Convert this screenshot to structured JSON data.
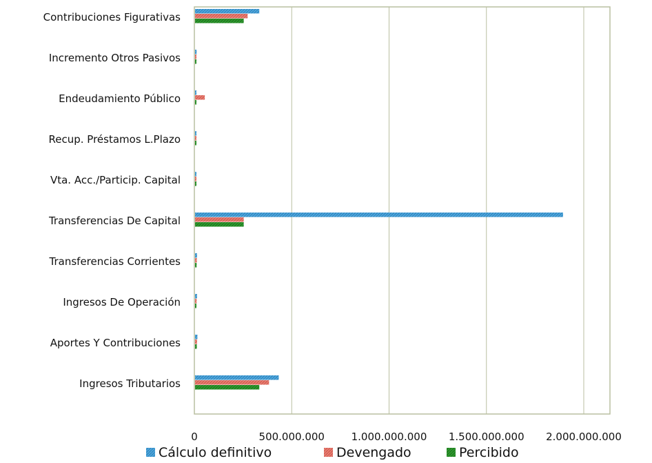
{
  "chart_data": {
    "type": "bar",
    "orientation": "horizontal",
    "categories": [
      "Ingresos Tributarios",
      "Aportes Y Contribuciones",
      "Ingresos De Operación",
      "Transferencias Corrientes",
      "Transferencias De Capital",
      "Vta. Acc./Particip. Capital",
      "Recup. Préstamos L.Plazo",
      "Endeudamiento Público",
      "Incremento Otros Pasivos",
      "Contribuciones Figurativas"
    ],
    "series": [
      {
        "name": "Cálculo definitivo",
        "color": "#4ea6dc",
        "values": [
          430000000,
          12000000,
          10000000,
          10000000,
          1890000000,
          5000000,
          5000000,
          4000000,
          8000000,
          330000000
        ]
      },
      {
        "name": "Devengado",
        "color": "#e97d72",
        "values": [
          380000000,
          10000000,
          8000000,
          9000000,
          250000000,
          4000000,
          5000000,
          50000000,
          6000000,
          270000000
        ]
      },
      {
        "name": "Percibido",
        "color": "#2f9a2f",
        "values": [
          330000000,
          9000000,
          7000000,
          8000000,
          250000000,
          3000000,
          4000000,
          4000000,
          5000000,
          250000000
        ]
      }
    ],
    "xlim": [
      0,
      2000000000
    ],
    "x_ticks": [
      0,
      500000000,
      1000000000,
      1500000000,
      2000000000
    ],
    "x_tick_labels": [
      "0",
      "500.000.000",
      "1.000.000.000",
      "1.500.000.000",
      "2.000.000.000"
    ],
    "grid": "vertical",
    "legend_position": "bottom",
    "title": "",
    "xlabel": "",
    "ylabel": ""
  }
}
